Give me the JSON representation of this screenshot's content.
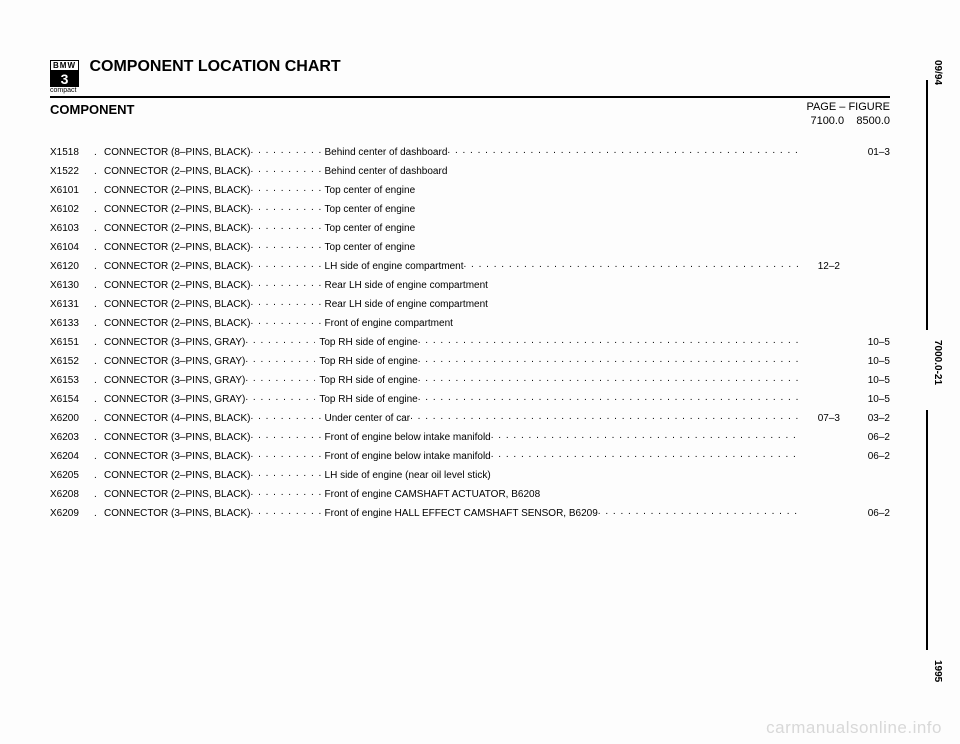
{
  "logo": {
    "brand": "BMW",
    "model": "3",
    "variant": "compact"
  },
  "title": "COMPONENT LOCATION CHART",
  "component_label": "COMPONENT",
  "col_page_label": "PAGE  –",
  "col_fig_label": "FIGURE",
  "col_page_sub": "7100.0",
  "col_fig_sub": "8500.0",
  "side": {
    "date": "09/94",
    "page": "7000.0-21",
    "year": "1995"
  },
  "watermark": "carmanualsonline.info",
  "rows": [
    {
      "code": "X1518",
      "name": "CONNECTOR (8–PINS, BLACK)",
      "loc": "Behind center of dashboard",
      "page": "",
      "fig": "01–3",
      "trail_after_loc": true
    },
    {
      "code": "X1522",
      "name": "CONNECTOR (2–PINS, BLACK)",
      "loc": "Behind center of dashboard",
      "page": "",
      "fig": "",
      "trail_after_loc": false
    },
    {
      "code": "X6101",
      "name": "CONNECTOR (2–PINS, BLACK)",
      "loc": "Top center of engine",
      "page": "",
      "fig": "",
      "trail_after_loc": false
    },
    {
      "code": "X6102",
      "name": "CONNECTOR (2–PINS, BLACK)",
      "loc": "Top center of engine",
      "page": "",
      "fig": "",
      "trail_after_loc": false
    },
    {
      "code": "X6103",
      "name": "CONNECTOR (2–PINS, BLACK)",
      "loc": "Top center of engine",
      "page": "",
      "fig": "",
      "trail_after_loc": false
    },
    {
      "code": "X6104",
      "name": "CONNECTOR (2–PINS, BLACK)",
      "loc": "Top center of engine",
      "page": "",
      "fig": "",
      "trail_after_loc": false
    },
    {
      "code": "X6120",
      "name": "CONNECTOR (2–PINS, BLACK)",
      "loc": "LH side of engine compartment",
      "page": "12–2",
      "fig": "",
      "trail_after_loc": true
    },
    {
      "code": "X6130",
      "name": "CONNECTOR (2–PINS, BLACK)",
      "loc": "Rear LH side of engine compartment",
      "page": "",
      "fig": "",
      "trail_after_loc": false
    },
    {
      "code": "X6131",
      "name": "CONNECTOR (2–PINS, BLACK)",
      "loc": "Rear LH side of engine compartment",
      "page": "",
      "fig": "",
      "trail_after_loc": false
    },
    {
      "code": "X6133",
      "name": "CONNECTOR (2–PINS, BLACK)",
      "loc": "Front of engine compartment",
      "page": "",
      "fig": "",
      "trail_after_loc": false
    },
    {
      "code": "X6151",
      "name": "CONNECTOR (3–PINS, GRAY)",
      "loc": "Top RH side of engine",
      "page": "",
      "fig": "10–5",
      "trail_after_loc": true
    },
    {
      "code": "X6152",
      "name": "CONNECTOR (3–PINS, GRAY)",
      "loc": "Top RH side of engine",
      "page": "",
      "fig": "10–5",
      "trail_after_loc": true
    },
    {
      "code": "X6153",
      "name": "CONNECTOR (3–PINS, GRAY)",
      "loc": "Top RH side of engine",
      "page": "",
      "fig": "10–5",
      "trail_after_loc": true
    },
    {
      "code": "X6154",
      "name": "CONNECTOR (3–PINS, GRAY)",
      "loc": "Top RH side of engine",
      "page": "",
      "fig": "10–5",
      "trail_after_loc": true
    },
    {
      "code": "X6200",
      "name": "CONNECTOR (4–PINS, BLACK)",
      "loc": "Under center of car",
      "page": "07–3",
      "fig": "03–2",
      "trail_after_loc": true
    },
    {
      "code": "X6203",
      "name": "CONNECTOR (3–PINS, BLACK)",
      "loc": "Front of engine below intake manifold",
      "page": "",
      "fig": "06–2",
      "trail_after_loc": true
    },
    {
      "code": "X6204",
      "name": "CONNECTOR (3–PINS, BLACK)",
      "loc": "Front of engine below intake manifold",
      "page": "",
      "fig": "06–2",
      "trail_after_loc": true
    },
    {
      "code": "X6205",
      "name": "CONNECTOR (2–PINS, BLACK)",
      "loc": "LH side of engine (near oil level stick)",
      "page": "",
      "fig": "",
      "trail_after_loc": false
    },
    {
      "code": "X6208",
      "name": "CONNECTOR (2–PINS, BLACK)",
      "loc": "Front of engine CAMSHAFT ACTUATOR, B6208",
      "page": "",
      "fig": "",
      "trail_after_loc": false
    },
    {
      "code": "X6209",
      "name": "CONNECTOR (3–PINS, BLACK)",
      "loc": "Front of engine HALL EFFECT CAMSHAFT SENSOR, B6209",
      "page": "",
      "fig": "06–2",
      "trail_after_loc": true
    }
  ]
}
